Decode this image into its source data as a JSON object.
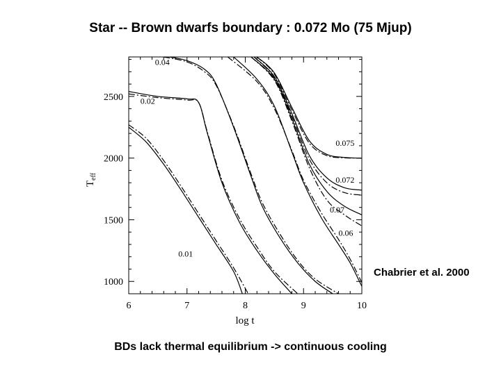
{
  "slide": {
    "title": "Star -- Brown dwarfs boundary : 0.072 Mo (75 Mjup)",
    "citation": "Chabrier et al. 2000",
    "caption": "BDs lack thermal equilibrium -> continuous cooling"
  },
  "chart_data": {
    "type": "line",
    "xlabel": "log t",
    "ylabel": "T",
    "ylabel_subscript": "eff",
    "xlim": [
      6,
      10
    ],
    "ylim": [
      900,
      2820
    ],
    "xticks": [
      6,
      7,
      8,
      9,
      10
    ],
    "yticks": [
      1000,
      1500,
      2000,
      2500
    ],
    "grid": false,
    "series": [
      {
        "name": "0.01",
        "style": "solid",
        "x": [
          6.0,
          6.3,
          6.6,
          6.9,
          7.2,
          7.5,
          7.8,
          7.95
        ],
        "y": [
          2250,
          2130,
          1950,
          1740,
          1520,
          1300,
          1080,
          900
        ]
      },
      {
        "name": "0.01",
        "style": "dashed",
        "x": [
          6.0,
          6.3,
          6.6,
          6.9,
          7.2,
          7.5,
          7.8,
          8.05
        ],
        "y": [
          2270,
          2160,
          1980,
          1770,
          1550,
          1330,
          1110,
          900
        ]
      },
      {
        "name": "0.02",
        "style": "solid",
        "x": [
          6.0,
          6.5,
          7.0,
          7.2,
          7.35,
          7.6,
          7.9,
          8.2,
          8.5,
          8.8
        ],
        "y": [
          2540,
          2500,
          2480,
          2450,
          2200,
          1800,
          1480,
          1250,
          1060,
          900
        ]
      },
      {
        "name": "0.02",
        "style": "dashed",
        "x": [
          6.0,
          6.5,
          7.0,
          7.2,
          7.35,
          7.6,
          7.9,
          8.2,
          8.5,
          8.9
        ],
        "y": [
          2520,
          2490,
          2470,
          2450,
          2210,
          1820,
          1510,
          1280,
          1080,
          900
        ]
      },
      {
        "name": "0.04",
        "style": "solid",
        "x": [
          6.7,
          7.0,
          7.3,
          7.5,
          7.8,
          8.1,
          8.3,
          8.6,
          8.9,
          9.2,
          9.5
        ],
        "y": [
          2820,
          2790,
          2720,
          2600,
          2250,
          1850,
          1600,
          1350,
          1150,
          1000,
          900
        ]
      },
      {
        "name": "0.04",
        "style": "dashed",
        "x": [
          6.6,
          7.0,
          7.3,
          7.5,
          7.8,
          8.1,
          8.3,
          8.6,
          8.9,
          9.2,
          9.6
        ],
        "y": [
          2820,
          2780,
          2700,
          2590,
          2260,
          1870,
          1630,
          1380,
          1170,
          1020,
          900
        ]
      },
      {
        "name": "0.06",
        "style": "solid",
        "x": [
          7.8,
          8.2,
          8.5,
          8.8,
          9.0,
          9.3,
          9.6,
          9.8,
          10.0
        ],
        "y": [
          2820,
          2640,
          2420,
          2050,
          1800,
          1520,
          1300,
          1150,
          960
        ]
      },
      {
        "name": "0.06",
        "style": "dashed",
        "x": [
          7.7,
          8.2,
          8.5,
          8.8,
          9.0,
          9.3,
          9.6,
          9.8,
          10.0
        ],
        "y": [
          2820,
          2620,
          2400,
          2060,
          1820,
          1560,
          1340,
          1180,
          990
        ]
      },
      {
        "name": "0.07",
        "style": "solid",
        "x": [
          8.1,
          8.5,
          8.8,
          9.1,
          9.4,
          9.7,
          10.0
        ],
        "y": [
          2820,
          2640,
          2320,
          1950,
          1730,
          1610,
          1540
        ]
      },
      {
        "name": "0.07",
        "style": "dashed",
        "x": [
          8.1,
          8.5,
          8.8,
          9.1,
          9.4,
          9.7,
          10.0
        ],
        "y": [
          2820,
          2630,
          2300,
          1920,
          1660,
          1540,
          1450
        ]
      },
      {
        "name": "0.072",
        "style": "solid",
        "x": [
          8.15,
          8.5,
          8.8,
          9.1,
          9.4,
          9.7,
          10.0
        ],
        "y": [
          2820,
          2660,
          2360,
          2020,
          1840,
          1760,
          1740
        ]
      },
      {
        "name": "0.072",
        "style": "dashed",
        "x": [
          8.15,
          8.5,
          8.8,
          9.1,
          9.4,
          9.7,
          10.0
        ],
        "y": [
          2820,
          2650,
          2340,
          1990,
          1800,
          1720,
          1700
        ]
      },
      {
        "name": "0.075",
        "style": "solid",
        "x": [
          8.2,
          8.5,
          8.8,
          9.1,
          9.4,
          9.7,
          10.0
        ],
        "y": [
          2820,
          2690,
          2410,
          2140,
          2030,
          2005,
          2000
        ]
      },
      {
        "name": "0.075",
        "style": "dashed",
        "x": [
          8.2,
          8.5,
          8.8,
          9.1,
          9.4,
          9.7,
          10.0
        ],
        "y": [
          2820,
          2680,
          2390,
          2120,
          2020,
          2002,
          2000
        ]
      }
    ],
    "annotations": [
      {
        "text": "0.04",
        "x": 6.45,
        "y": 2755
      },
      {
        "text": "0.02",
        "x": 6.2,
        "y": 2440
      },
      {
        "text": "0.01",
        "x": 6.85,
        "y": 1200
      },
      {
        "text": "0.075",
        "x": 9.55,
        "y": 2100
      },
      {
        "text": "0.072",
        "x": 9.55,
        "y": 1800
      },
      {
        "text": "0.07",
        "x": 9.45,
        "y": 1560
      },
      {
        "text": "0.06",
        "x": 9.6,
        "y": 1370
      }
    ]
  }
}
